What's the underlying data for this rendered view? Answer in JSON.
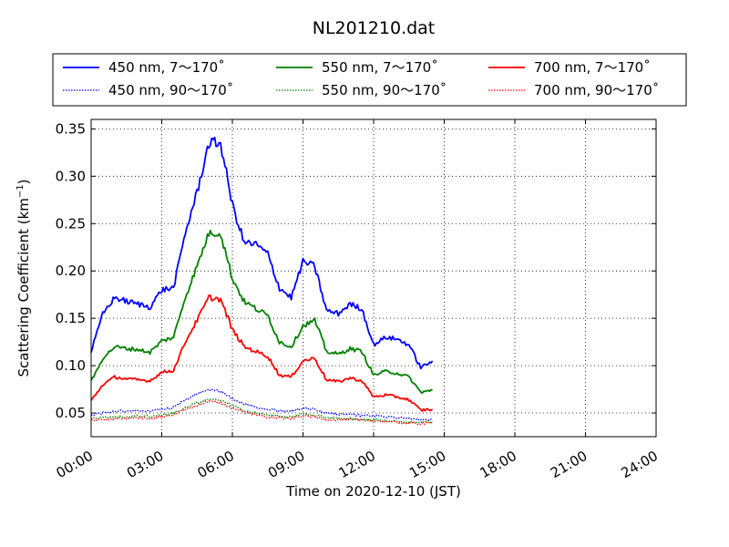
{
  "chart_data": {
    "type": "line",
    "title": "NL201210.dat",
    "xlabel": "Time on 2020-12-10 (JST)",
    "ylabel_text": "Scattering Coefficient (km",
    "ylabel_sup": "−1",
    "ylabel_close": ")",
    "xlim_hours": [
      0,
      24
    ],
    "ylim": [
      0.025,
      0.36
    ],
    "x_ticks": [
      {
        "hour": 0,
        "label": "00:00"
      },
      {
        "hour": 3,
        "label": "03:00"
      },
      {
        "hour": 6,
        "label": "06:00"
      },
      {
        "hour": 9,
        "label": "09:00"
      },
      {
        "hour": 12,
        "label": "12:00"
      },
      {
        "hour": 15,
        "label": "15:00"
      },
      {
        "hour": 18,
        "label": "18:00"
      },
      {
        "hour": 21,
        "label": "21:00"
      },
      {
        "hour": 24,
        "label": "24:00"
      }
    ],
    "y_ticks": [
      {
        "value": 0.05,
        "label": "0.05"
      },
      {
        "value": 0.1,
        "label": "0.10"
      },
      {
        "value": 0.15,
        "label": "0.15"
      },
      {
        "value": 0.2,
        "label": "0.20"
      },
      {
        "value": 0.25,
        "label": "0.25"
      },
      {
        "value": 0.3,
        "label": "0.30"
      },
      {
        "value": 0.35,
        "label": "0.35"
      }
    ],
    "grid": true,
    "legend_placement": "top",
    "x_hours": [
      0.0,
      0.5,
      1.0,
      1.5,
      2.0,
      2.5,
      3.0,
      3.5,
      4.0,
      4.5,
      5.0,
      5.5,
      6.0,
      6.5,
      7.0,
      7.5,
      8.0,
      8.5,
      9.0,
      9.5,
      10.0,
      10.5,
      11.0,
      11.5,
      12.0,
      12.5,
      13.0,
      13.5,
      14.0,
      14.5
    ],
    "series": [
      {
        "name": "450 nm, 7～170˚",
        "color": "#0000ff",
        "style": "solid",
        "values": [
          0.115,
          0.155,
          0.172,
          0.168,
          0.165,
          0.162,
          0.18,
          0.182,
          0.24,
          0.283,
          0.335,
          0.335,
          0.27,
          0.23,
          0.228,
          0.218,
          0.182,
          0.172,
          0.21,
          0.205,
          0.158,
          0.155,
          0.165,
          0.16,
          0.122,
          0.13,
          0.128,
          0.122,
          0.098,
          0.105
        ]
      },
      {
        "name": "450 nm, 90～170˚",
        "color": "#0000ff",
        "style": "dotted",
        "values": [
          0.048,
          0.05,
          0.052,
          0.052,
          0.053,
          0.052,
          0.054,
          0.056,
          0.064,
          0.07,
          0.075,
          0.073,
          0.065,
          0.06,
          0.056,
          0.054,
          0.052,
          0.052,
          0.055,
          0.054,
          0.05,
          0.049,
          0.049,
          0.047,
          0.047,
          0.046,
          0.045,
          0.044,
          0.043,
          0.043
        ]
      },
      {
        "name": "550 nm, 7～170˚",
        "color": "#008000",
        "style": "solid",
        "values": [
          0.083,
          0.108,
          0.12,
          0.118,
          0.117,
          0.114,
          0.126,
          0.13,
          0.172,
          0.205,
          0.24,
          0.24,
          0.192,
          0.168,
          0.16,
          0.153,
          0.125,
          0.12,
          0.142,
          0.148,
          0.115,
          0.112,
          0.118,
          0.115,
          0.09,
          0.094,
          0.092,
          0.088,
          0.072,
          0.074
        ]
      },
      {
        "name": "550 nm, 90～170˚",
        "color": "#008000",
        "style": "dotted",
        "values": [
          0.044,
          0.045,
          0.046,
          0.046,
          0.047,
          0.046,
          0.048,
          0.05,
          0.056,
          0.061,
          0.065,
          0.064,
          0.058,
          0.053,
          0.05,
          0.048,
          0.047,
          0.046,
          0.049,
          0.048,
          0.045,
          0.044,
          0.044,
          0.043,
          0.043,
          0.042,
          0.041,
          0.04,
          0.04,
          0.041
        ]
      },
      {
        "name": "700 nm, 7～170˚",
        "color": "#ff0000",
        "style": "solid",
        "values": [
          0.063,
          0.08,
          0.088,
          0.086,
          0.085,
          0.084,
          0.093,
          0.095,
          0.125,
          0.148,
          0.172,
          0.17,
          0.138,
          0.12,
          0.115,
          0.11,
          0.09,
          0.088,
          0.105,
          0.108,
          0.085,
          0.083,
          0.087,
          0.084,
          0.067,
          0.069,
          0.067,
          0.064,
          0.053,
          0.054
        ]
      },
      {
        "name": "700 nm, 90～170˚",
        "color": "#ff0000",
        "style": "dotted",
        "values": [
          0.042,
          0.043,
          0.044,
          0.044,
          0.045,
          0.044,
          0.046,
          0.048,
          0.054,
          0.058,
          0.062,
          0.061,
          0.055,
          0.051,
          0.048,
          0.046,
          0.045,
          0.044,
          0.047,
          0.046,
          0.043,
          0.043,
          0.043,
          0.042,
          0.042,
          0.041,
          0.04,
          0.039,
          0.039,
          0.04
        ]
      }
    ]
  }
}
